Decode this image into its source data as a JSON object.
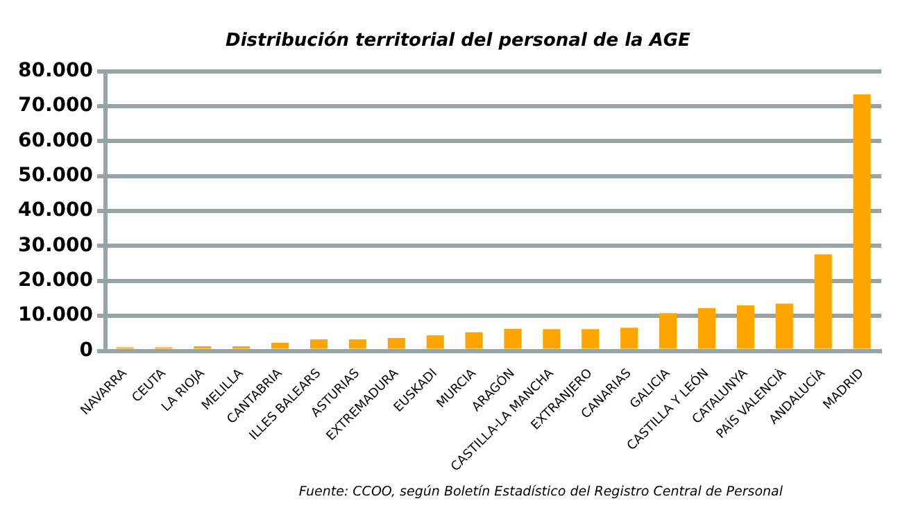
{
  "chart_data": {
    "type": "bar",
    "title": "Distribución territorial del personal de la AGE",
    "categories": [
      "NAVARRA",
      "CEUTA",
      "LA RIOJA",
      "MELILLA",
      "CANTABRIA",
      "ILLES BALEARS",
      "ASTURIAS",
      "EXTREMADURA",
      "EUSKADI",
      "MURCIA",
      "ARAGÓN",
      "CASTILLA-LA MANCHA",
      "EXTRANJERO",
      "CANARIAS",
      "GALICIA",
      "CASTILLA Y LEÓN",
      "CATALUNYA",
      "PAÍS VALENCIÀ",
      "ANDALUCÍA",
      "MADRID"
    ],
    "values": [
      1000,
      1000,
      1300,
      1300,
      2300,
      3300,
      3300,
      3700,
      4400,
      5300,
      6300,
      6200,
      6200,
      6600,
      10800,
      12200,
      13000,
      13500,
      27600,
      73400
    ],
    "color": "#ffa500",
    "ylim": [
      0,
      80000
    ],
    "yticks": [
      {
        "value": 0,
        "label": "0"
      },
      {
        "value": 10000,
        "label": "10.000"
      },
      {
        "value": 20000,
        "label": "20.000"
      },
      {
        "value": 30000,
        "label": "30.000"
      },
      {
        "value": 40000,
        "label": "40.000"
      },
      {
        "value": 50000,
        "label": "50.000"
      },
      {
        "value": 60000,
        "label": "60.000"
      },
      {
        "value": 70000,
        "label": "70.000"
      },
      {
        "value": 80000,
        "label": "80.000"
      }
    ],
    "grid": "y",
    "annotations": [
      "Fuente: CCOO, según Boletín Estadístico del Registro Central de Personal"
    ]
  }
}
